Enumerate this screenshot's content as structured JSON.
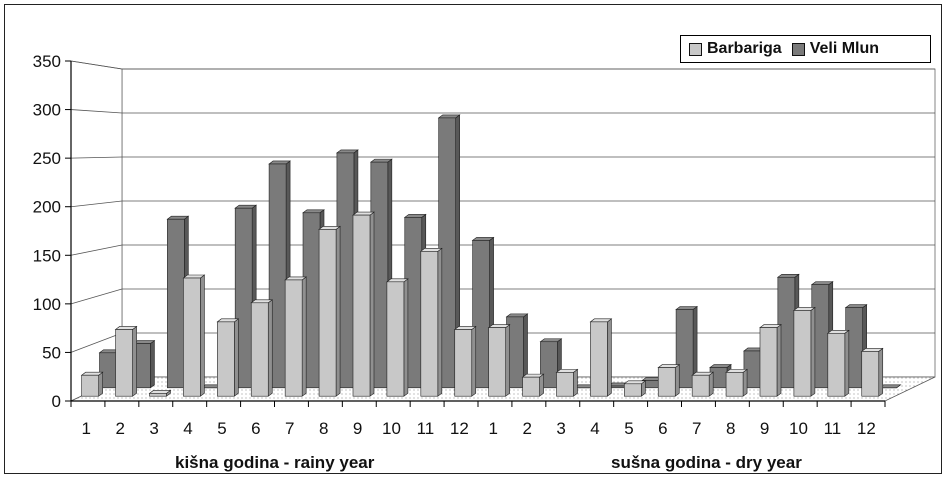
{
  "chart_data": {
    "type": "bar",
    "style": "3d",
    "groups": [
      {
        "label": "kišna godina - rainy year",
        "categories": [
          "1",
          "2",
          "3",
          "4",
          "5",
          "6",
          "7",
          "8",
          "9",
          "10",
          "11",
          "12"
        ]
      },
      {
        "label": "sušna godina - dry year",
        "categories": [
          "1",
          "2",
          "3",
          "4",
          "5",
          "6",
          "7",
          "8",
          "9",
          "10",
          "11",
          "12"
        ]
      }
    ],
    "series": [
      {
        "name": "Barbariga",
        "color": "#c8c8c8",
        "values": [
          22,
          70,
          3,
          124,
          78,
          98,
          122,
          175,
          190,
          120,
          152,
          70,
          72,
          20,
          25,
          78,
          13,
          30,
          22,
          25,
          72,
          90,
          66,
          47
        ]
      },
      {
        "name": "Veli Mlun",
        "color": "#7a7a7a",
        "values": [
          38,
          48,
          183,
          0,
          195,
          243,
          190,
          255,
          245,
          185,
          293,
          160,
          77,
          50,
          0,
          2,
          8,
          85,
          22,
          40,
          120,
          112,
          87,
          0
        ]
      }
    ],
    "yticks": [
      0,
      50,
      100,
      150,
      200,
      250,
      300,
      350
    ],
    "ylim": [
      0,
      350
    ],
    "legend_position": "top-right",
    "grid": true
  }
}
